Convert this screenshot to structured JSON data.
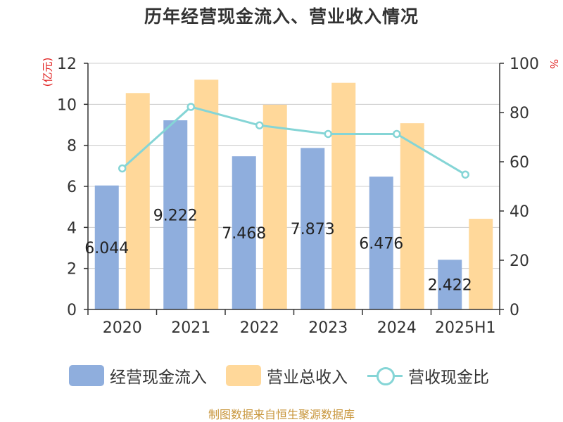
{
  "title": "历年经营现金流入、营业收入情况",
  "left_axis_unit": "(亿元)",
  "right_axis_unit": "%",
  "source": "制图数据来自恒生聚源数据库",
  "colors": {
    "cash_inflow": "#8faedd",
    "revenue": "#ffd89a",
    "ratio": "#85d5d6",
    "axis": "#333333",
    "grid": "#cccccc",
    "unit_label": "#e02020",
    "source": "#c8963c"
  },
  "chart_data": {
    "type": "bar",
    "categories": [
      "2020",
      "2021",
      "2022",
      "2023",
      "2024",
      "2025H1"
    ],
    "series": [
      {
        "name": "经营现金流入",
        "type": "bar",
        "axis": "left",
        "values": [
          6.044,
          9.222,
          7.468,
          7.873,
          6.476,
          2.422
        ],
        "labels": [
          "6.044",
          "9.222",
          "7.468",
          "7.873",
          "6.476",
          "2.422"
        ]
      },
      {
        "name": "营业总收入",
        "type": "bar",
        "axis": "left",
        "values": [
          10.55,
          11.2,
          9.98,
          11.05,
          9.08,
          4.42
        ]
      },
      {
        "name": "营收现金比",
        "type": "line",
        "axis": "right",
        "values": [
          57.3,
          82.3,
          74.8,
          71.3,
          71.3,
          54.8
        ]
      }
    ],
    "left_axis": {
      "min": 0,
      "max": 12,
      "ticks": [
        "0",
        "2",
        "4",
        "6",
        "8",
        "10",
        "12"
      ]
    },
    "right_axis": {
      "min": 0,
      "max": 100,
      "ticks": [
        "0",
        "20",
        "40",
        "60",
        "80",
        "100"
      ]
    },
    "grid": true,
    "legend_position": "bottom"
  }
}
